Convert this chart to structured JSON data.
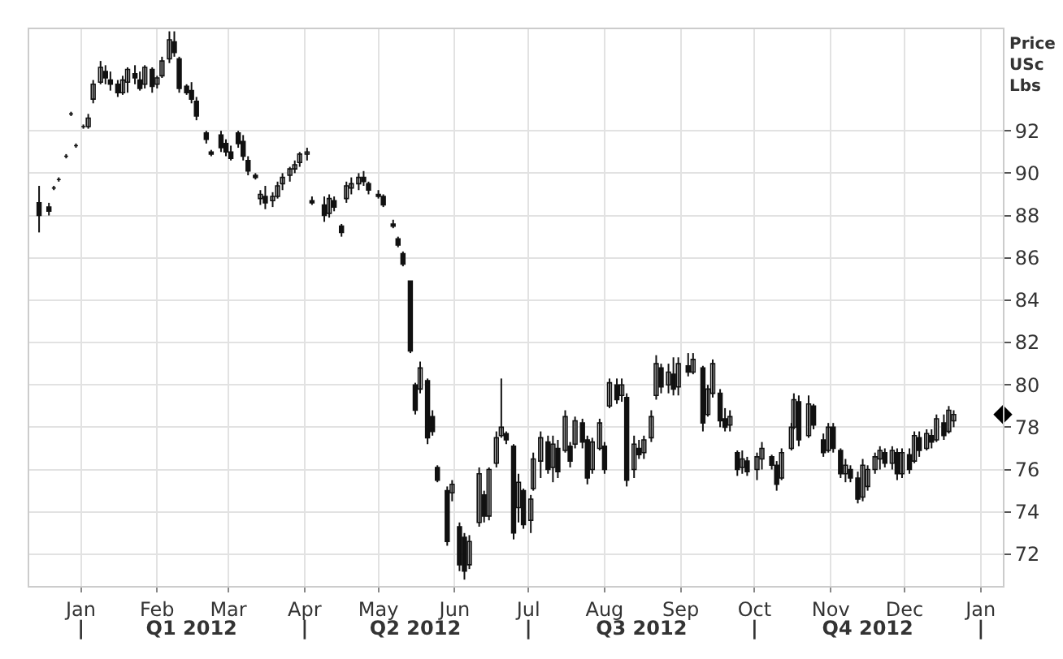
{
  "chart_data": {
    "type": "candlestick",
    "ylabel": "Price\nUSc\nLbs",
    "xlim": [
      "2011-12-11",
      "2013-01-10"
    ],
    "xticks": [
      {
        "value": "2012-01-01",
        "label": "Jan"
      },
      {
        "value": "2012-02-01",
        "label": "Feb"
      },
      {
        "value": "2012-03-01",
        "label": "Mar"
      },
      {
        "value": "2012-04-01",
        "label": "Apr"
      },
      {
        "value": "2012-05-01",
        "label": "May"
      },
      {
        "value": "2012-06-01",
        "label": "Jun"
      },
      {
        "value": "2012-07-01",
        "label": "Jul"
      },
      {
        "value": "2012-08-01",
        "label": "Aug"
      },
      {
        "value": "2012-09-01",
        "label": "Sep"
      },
      {
        "value": "2012-10-01",
        "label": "Oct"
      },
      {
        "value": "2012-11-01",
        "label": "Nov"
      },
      {
        "value": "2012-12-01",
        "label": "Dec"
      },
      {
        "value": "2013-01-01",
        "label": "Jan"
      }
    ],
    "x2lim": [
      "2011-12-11",
      "2013-01-10"
    ],
    "x2ticks": [
      {
        "value": "2012-01-01",
        "label": "|"
      },
      {
        "value": "2012-02-15",
        "label": "Q1 2012"
      },
      {
        "value": "2012-04-01",
        "label": "|"
      },
      {
        "value": "2012-05-16",
        "label": "Q2 2012"
      },
      {
        "value": "2012-07-01",
        "label": "|"
      },
      {
        "value": "2012-08-16",
        "label": "Q3 2012"
      },
      {
        "value": "2012-10-01",
        "label": "|"
      },
      {
        "value": "2012-11-16",
        "label": "Q4 2012"
      },
      {
        "value": "2013-01-01",
        "label": "|"
      }
    ],
    "ylim": [
      70.5,
      96.8
    ],
    "yticks": [
      72,
      74,
      76,
      78,
      80,
      82,
      84,
      86,
      88,
      90,
      92
    ],
    "grid": true,
    "series": [
      {
        "color": "#111111",
        "x": [
          "2011-12-15",
          "2011-12-19",
          "2011-12-21",
          "2011-12-23",
          "2011-12-26",
          "2011-12-28",
          "2011-12-30",
          "2012-01-02",
          "2012-01-04",
          "2012-01-06",
          "2012-01-09",
          "2012-01-11",
          "2012-01-13",
          "2012-01-16",
          "2012-01-18",
          "2012-01-20",
          "2012-01-23",
          "2012-01-25",
          "2012-01-27",
          "2012-01-30",
          "2012-02-01",
          "2012-02-03",
          "2012-02-06",
          "2012-02-08",
          "2012-02-10",
          "2012-02-13",
          "2012-02-15",
          "2012-02-17",
          "2012-02-21",
          "2012-02-23",
          "2012-02-27",
          "2012-02-29",
          "2012-03-02",
          "2012-03-05",
          "2012-03-07",
          "2012-03-09",
          "2012-03-12",
          "2012-03-14",
          "2012-03-16",
          "2012-03-19",
          "2012-03-21",
          "2012-03-23",
          "2012-03-26",
          "2012-03-28",
          "2012-03-30",
          "2012-04-02",
          "2012-04-04",
          "2012-04-09",
          "2012-04-11",
          "2012-04-13",
          "2012-04-16",
          "2012-04-18",
          "2012-04-20",
          "2012-04-23",
          "2012-04-25",
          "2012-04-27",
          "2012-05-01",
          "2012-05-03",
          "2012-05-07",
          "2012-05-09",
          "2012-05-11",
          "2012-05-14",
          "2012-05-16",
          "2012-05-18",
          "2012-05-21",
          "2012-05-23",
          "2012-05-25",
          "2012-05-29",
          "2012-05-31",
          "2012-06-03",
          "2012-06-05",
          "2012-06-07",
          "2012-06-11",
          "2012-06-13",
          "2012-06-15",
          "2012-06-18",
          "2012-06-20",
          "2012-06-22",
          "2012-06-25",
          "2012-06-27",
          "2012-06-29",
          "2012-07-02",
          "2012-07-03",
          "2012-07-06",
          "2012-07-09",
          "2012-07-11",
          "2012-07-13",
          "2012-07-16",
          "2012-07-18",
          "2012-07-20",
          "2012-07-23",
          "2012-07-25",
          "2012-07-27",
          "2012-07-30",
          "2012-08-01",
          "2012-08-03",
          "2012-08-06",
          "2012-08-08",
          "2012-08-10",
          "2012-08-13",
          "2012-08-15",
          "2012-08-17",
          "2012-08-20",
          "2012-08-22",
          "2012-08-24",
          "2012-08-27",
          "2012-08-29",
          "2012-08-31",
          "2012-09-04",
          "2012-09-06",
          "2012-09-10",
          "2012-09-12",
          "2012-09-14",
          "2012-09-17",
          "2012-09-19",
          "2012-09-21",
          "2012-09-24",
          "2012-09-26",
          "2012-09-28",
          "2012-10-02",
          "2012-10-04",
          "2012-10-08",
          "2012-10-10",
          "2012-10-12",
          "2012-10-16",
          "2012-10-17",
          "2012-10-19",
          "2012-10-23",
          "2012-10-25",
          "2012-10-29",
          "2012-10-31",
          "2012-11-02",
          "2012-11-05",
          "2012-11-07",
          "2012-11-09",
          "2012-11-12",
          "2012-11-14",
          "2012-11-16",
          "2012-11-19",
          "2012-11-21",
          "2012-11-23",
          "2012-11-26",
          "2012-11-28",
          "2012-11-30",
          "2012-12-03",
          "2012-12-05",
          "2012-12-07",
          "2012-12-10",
          "2012-12-12",
          "2012-12-14",
          "2012-12-17",
          "2012-12-19",
          "2012-12-21"
        ],
        "ohlc": [
          [
            88.6,
            89.4,
            87.2,
            88.0
          ],
          [
            88.4,
            88.6,
            88.0,
            88.2
          ],
          [
            89.3,
            89.4,
            89.2,
            89.3
          ],
          [
            89.7,
            89.8,
            89.6,
            89.7
          ],
          [
            90.8,
            90.9,
            90.7,
            90.8
          ],
          [
            92.8,
            92.9,
            92.7,
            92.8
          ],
          [
            91.3,
            91.4,
            91.2,
            91.3
          ],
          [
            92.2,
            92.3,
            92.1,
            92.2
          ],
          [
            92.2,
            92.8,
            92.1,
            92.6
          ],
          [
            93.5,
            94.4,
            93.3,
            94.2
          ],
          [
            94.3,
            95.3,
            94.2,
            95.0
          ],
          [
            94.8,
            95.1,
            94.2,
            94.5
          ],
          [
            94.4,
            94.8,
            93.9,
            94.2
          ],
          [
            94.2,
            94.4,
            93.6,
            93.8
          ],
          [
            93.8,
            94.6,
            93.7,
            94.4
          ],
          [
            94.3,
            95.0,
            93.8,
            94.9
          ],
          [
            94.7,
            95.1,
            94.2,
            94.5
          ],
          [
            94.4,
            94.8,
            93.9,
            94.0
          ],
          [
            94.2,
            95.1,
            94.0,
            95.0
          ],
          [
            94.9,
            95.0,
            93.8,
            94.1
          ],
          [
            94.2,
            94.6,
            94.0,
            94.5
          ],
          [
            94.6,
            95.5,
            94.5,
            95.3
          ],
          [
            95.4,
            96.7,
            95.2,
            96.3
          ],
          [
            96.2,
            96.7,
            95.5,
            95.7
          ],
          [
            95.4,
            95.5,
            93.8,
            94.0
          ],
          [
            94.1,
            94.2,
            93.7,
            93.8
          ],
          [
            93.9,
            94.3,
            93.3,
            93.5
          ],
          [
            93.4,
            93.6,
            92.5,
            92.7
          ],
          [
            91.9,
            92.0,
            91.4,
            91.6
          ],
          [
            91.0,
            91.1,
            90.8,
            90.9
          ],
          [
            91.8,
            92.0,
            91.0,
            91.2
          ],
          [
            91.4,
            91.6,
            90.8,
            91.0
          ],
          [
            91.0,
            91.3,
            90.6,
            90.7
          ],
          [
            91.9,
            92.0,
            91.2,
            91.4
          ],
          [
            91.5,
            91.8,
            90.6,
            90.8
          ],
          [
            90.6,
            90.8,
            89.9,
            90.1
          ],
          [
            89.9,
            90.0,
            89.7,
            89.8
          ],
          [
            88.8,
            89.2,
            88.5,
            89.0
          ],
          [
            88.9,
            89.4,
            88.3,
            88.6
          ],
          [
            88.7,
            89.1,
            88.4,
            88.9
          ],
          [
            88.9,
            89.6,
            88.8,
            89.4
          ],
          [
            89.5,
            90.0,
            89.2,
            89.8
          ],
          [
            89.9,
            90.3,
            89.6,
            90.2
          ],
          [
            90.2,
            90.6,
            90.0,
            90.4
          ],
          [
            90.5,
            91.0,
            90.3,
            90.9
          ],
          [
            90.9,
            91.2,
            90.6,
            91.0
          ],
          [
            88.7,
            88.9,
            88.5,
            88.6
          ],
          [
            88.5,
            88.9,
            87.7,
            88.0
          ],
          [
            88.1,
            89.0,
            87.9,
            88.8
          ],
          [
            88.7,
            88.9,
            88.2,
            88.4
          ],
          [
            87.5,
            87.6,
            87.0,
            87.2
          ],
          [
            88.8,
            89.6,
            88.6,
            89.4
          ],
          [
            89.3,
            89.8,
            89.0,
            89.5
          ],
          [
            89.5,
            90.0,
            89.2,
            89.8
          ],
          [
            89.8,
            90.1,
            89.4,
            89.6
          ],
          [
            89.5,
            89.6,
            89.0,
            89.2
          ],
          [
            89.0,
            89.2,
            88.8,
            88.9
          ],
          [
            88.9,
            89.0,
            88.4,
            88.5
          ],
          [
            87.6,
            87.8,
            87.4,
            87.5
          ],
          [
            86.9,
            87.0,
            86.5,
            86.6
          ],
          [
            86.2,
            86.3,
            85.6,
            85.7
          ],
          [
            84.9,
            84.9,
            81.5,
            81.6
          ],
          [
            80.0,
            80.1,
            78.6,
            78.8
          ],
          [
            79.8,
            81.1,
            79.6,
            80.8
          ],
          [
            80.2,
            80.3,
            77.2,
            77.5
          ],
          [
            78.5,
            78.8,
            77.6,
            77.8
          ],
          [
            76.1,
            76.2,
            75.4,
            75.5
          ],
          [
            75.0,
            75.2,
            72.4,
            72.6
          ],
          [
            74.9,
            75.5,
            74.5,
            75.3
          ],
          [
            73.3,
            73.5,
            71.2,
            71.5
          ],
          [
            72.8,
            73.0,
            70.8,
            71.2
          ],
          [
            71.5,
            72.9,
            71.3,
            72.6
          ],
          [
            73.5,
            76.1,
            73.3,
            75.8
          ],
          [
            74.8,
            75.0,
            73.5,
            73.8
          ],
          [
            73.8,
            76.1,
            73.6,
            76.0
          ],
          [
            76.3,
            77.8,
            76.1,
            77.5
          ],
          [
            77.6,
            80.3,
            77.5,
            78.0
          ],
          [
            77.7,
            77.8,
            77.2,
            77.4
          ],
          [
            77.1,
            77.2,
            72.7,
            73.0
          ],
          [
            74.2,
            75.8,
            73.5,
            75.4
          ],
          [
            75.0,
            75.1,
            73.2,
            73.4
          ],
          [
            73.6,
            74.8,
            73.0,
            74.6
          ],
          [
            75.1,
            76.8,
            75.0,
            76.5
          ],
          [
            76.4,
            77.8,
            75.6,
            77.5
          ],
          [
            77.3,
            77.6,
            75.8,
            76.0
          ],
          [
            76.1,
            77.6,
            75.4,
            77.2
          ],
          [
            77.0,
            77.4,
            75.6,
            75.9
          ],
          [
            76.9,
            78.8,
            76.8,
            78.5
          ],
          [
            77.1,
            77.3,
            76.1,
            76.4
          ],
          [
            77.2,
            78.5,
            77.0,
            78.3
          ],
          [
            78.2,
            78.4,
            77.0,
            77.3
          ],
          [
            77.4,
            77.6,
            75.3,
            75.6
          ],
          [
            76.0,
            77.5,
            75.8,
            77.3
          ],
          [
            77.0,
            78.4,
            76.9,
            78.2
          ],
          [
            77.1,
            77.3,
            75.8,
            76.0
          ],
          [
            79.0,
            80.3,
            78.9,
            80.1
          ],
          [
            80.0,
            80.3,
            79.1,
            79.3
          ],
          [
            79.5,
            80.3,
            79.2,
            80.0
          ],
          [
            79.4,
            79.6,
            75.2,
            75.5
          ],
          [
            76.0,
            77.6,
            75.6,
            77.2
          ],
          [
            77.0,
            77.4,
            76.5,
            76.7
          ],
          [
            76.8,
            77.6,
            76.5,
            77.4
          ],
          [
            77.5,
            78.8,
            77.3,
            78.5
          ],
          [
            79.5,
            81.4,
            79.3,
            81.0
          ],
          [
            80.8,
            81.0,
            79.6,
            79.9
          ],
          [
            80.0,
            81.0,
            79.6,
            80.6
          ],
          [
            80.5,
            81.3,
            79.5,
            79.8
          ],
          [
            79.9,
            81.3,
            79.5,
            81.0
          ],
          [
            80.9,
            81.5,
            80.4,
            80.6
          ],
          [
            80.6,
            81.5,
            80.5,
            81.2
          ],
          [
            80.8,
            80.9,
            77.8,
            78.2
          ],
          [
            78.6,
            80.0,
            78.5,
            79.8
          ],
          [
            79.6,
            81.2,
            79.4,
            81.0
          ],
          [
            79.6,
            79.8,
            78.0,
            78.3
          ],
          [
            78.4,
            78.9,
            77.8,
            78.0
          ],
          [
            78.1,
            78.8,
            77.8,
            78.5
          ],
          [
            76.8,
            76.9,
            75.7,
            76.0
          ],
          [
            76.1,
            76.9,
            75.8,
            76.5
          ],
          [
            76.4,
            76.6,
            75.7,
            75.9
          ],
          [
            76.0,
            76.8,
            75.5,
            76.6
          ],
          [
            76.5,
            77.3,
            76.0,
            77.0
          ],
          [
            76.6,
            76.7,
            76.0,
            76.2
          ],
          [
            76.2,
            76.4,
            75.0,
            75.3
          ],
          [
            75.6,
            77.0,
            75.5,
            76.8
          ],
          [
            77.0,
            78.2,
            76.9,
            78.0
          ],
          [
            78.0,
            79.6,
            77.9,
            79.3
          ],
          [
            79.2,
            79.5,
            77.1,
            77.4
          ],
          [
            77.6,
            79.5,
            77.5,
            79.1
          ],
          [
            79.0,
            79.1,
            77.9,
            78.1
          ],
          [
            77.4,
            77.7,
            76.6,
            76.8
          ],
          [
            76.9,
            78.2,
            76.8,
            78.0
          ],
          [
            78.0,
            78.2,
            76.8,
            77.0
          ],
          [
            76.9,
            77.0,
            75.6,
            75.8
          ],
          [
            75.8,
            76.5,
            75.4,
            76.2
          ],
          [
            76.0,
            76.2,
            75.4,
            75.6
          ],
          [
            75.6,
            75.9,
            74.4,
            74.6
          ],
          [
            74.7,
            76.5,
            74.5,
            76.2
          ],
          [
            75.2,
            76.2,
            75.0,
            76.0
          ],
          [
            76.0,
            76.8,
            75.8,
            76.6
          ],
          [
            76.5,
            77.1,
            76.0,
            76.9
          ],
          [
            76.8,
            77.0,
            76.1,
            76.3
          ],
          [
            76.3,
            77.1,
            76.0,
            76.9
          ],
          [
            76.8,
            77.0,
            75.5,
            75.8
          ],
          [
            75.8,
            77.0,
            75.6,
            76.8
          ],
          [
            76.7,
            77.0,
            75.8,
            76.0
          ],
          [
            76.4,
            77.8,
            76.3,
            77.6
          ],
          [
            77.5,
            77.8,
            76.6,
            76.9
          ],
          [
            77.0,
            77.9,
            76.9,
            77.7
          ],
          [
            77.6,
            77.9,
            77.0,
            77.3
          ],
          [
            77.4,
            78.6,
            77.3,
            78.4
          ],
          [
            78.2,
            78.6,
            77.4,
            77.6
          ],
          [
            77.8,
            79.0,
            77.7,
            78.8
          ],
          [
            78.3,
            78.8,
            78.0,
            78.6
          ]
        ]
      },
      {
        "type": "scatter",
        "color": "#000000",
        "marker": "diamond",
        "x": [
          "2013-01-10"
        ],
        "values": [
          78.6
        ]
      }
    ]
  }
}
